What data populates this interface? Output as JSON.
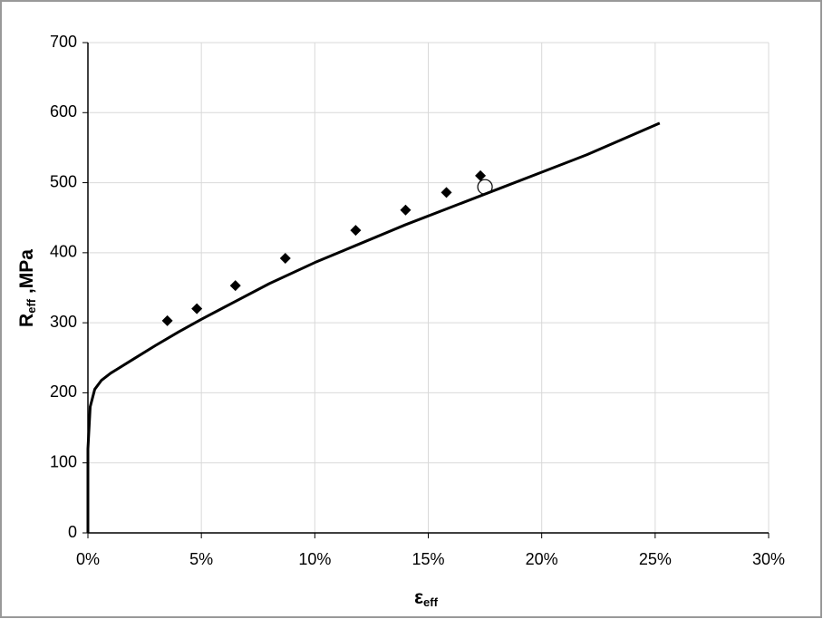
{
  "chart_data": {
    "type": "line",
    "x_label": {
      "main": "ε",
      "sub": "eff"
    },
    "y_label": {
      "main": "R",
      "sub": "eff",
      "rest": " ,MPa"
    },
    "xlim": [
      0,
      30
    ],
    "ylim": [
      0,
      700
    ],
    "xticks": [
      {
        "value": 0,
        "label": "0%"
      },
      {
        "value": 5,
        "label": "5%"
      },
      {
        "value": 10,
        "label": "10%"
      },
      {
        "value": 15,
        "label": "15%"
      },
      {
        "value": 20,
        "label": "20%"
      },
      {
        "value": 25,
        "label": "25%"
      },
      {
        "value": 30,
        "label": "30%"
      }
    ],
    "yticks": [
      0,
      100,
      200,
      300,
      400,
      500,
      600,
      700
    ],
    "grid": true,
    "series": [
      {
        "type": "line",
        "color": "#000000",
        "x": [
          0,
          0,
          0.1,
          0.3,
          0.6,
          1,
          2,
          3,
          4,
          5,
          6,
          8,
          10,
          12,
          14,
          16,
          18,
          20,
          22,
          25.2
        ],
        "values": [
          0,
          120,
          180,
          205,
          218,
          228,
          248,
          268,
          287,
          305,
          322,
          356,
          386,
          413,
          440,
          465,
          490,
          515,
          540,
          585
        ]
      },
      {
        "type": "scatter",
        "marker": "diamond",
        "color": "#000000",
        "x": [
          3.5,
          4.8,
          6.5,
          8.7,
          11.8,
          14,
          15.8,
          17.3
        ],
        "values": [
          303,
          320,
          353,
          392,
          432,
          461,
          486,
          510
        ]
      },
      {
        "type": "scatter",
        "marker": "circle-open",
        "color": "#000000",
        "x": [
          17.5
        ],
        "values": [
          494
        ]
      }
    ]
  }
}
